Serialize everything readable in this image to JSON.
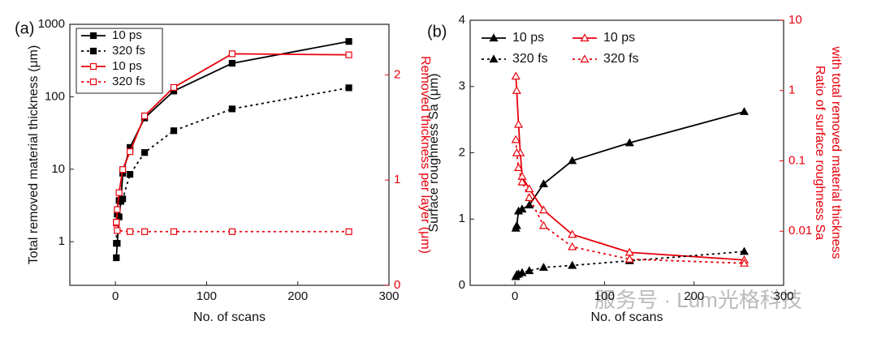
{
  "chart_data": [
    {
      "type": "line",
      "panel": "(a)",
      "xlabel": "No. of scans",
      "ylabel": "Total removed material thickness (μm)",
      "y2label": [
        "Removed thickness per layer (μm)"
      ],
      "xlim": [
        -50,
        300
      ],
      "xticks": [
        0,
        100,
        200,
        300
      ],
      "ylim": [
        0.25,
        1000
      ],
      "yticks": [
        1,
        10,
        100,
        1000
      ],
      "yscale": "log",
      "y2lim": [
        0,
        2.48
      ],
      "y2ticks": [
        0,
        1,
        2
      ],
      "y2color": "#e8000b",
      "legend": "upper left",
      "series": [
        {
          "name": "10 ps",
          "color": "#000000",
          "marker": "square",
          "filled": true,
          "dash": false,
          "x": [
            1,
            2,
            4,
            6,
            8,
            16,
            32,
            64,
            128,
            256
          ],
          "values": [
            0.6,
            0.95,
            2.2,
            3.6,
            8.8,
            20,
            51,
            120,
            290,
            580
          ]
        },
        {
          "name": "320 fs",
          "color": "#000000",
          "marker": "square",
          "filled": true,
          "dash": true,
          "x": [
            1,
            2,
            4,
            8,
            16,
            32,
            64,
            128,
            256
          ],
          "values": [
            0.95,
            2.4,
            3.7,
            3.9,
            8.5,
            17,
            34,
            68,
            133
          ]
        },
        {
          "name": "10 ps",
          "color": "#e8000b",
          "marker": "square",
          "filled": false,
          "dash": false,
          "axis": "y2",
          "x": [
            1,
            2,
            4,
            8,
            16,
            32,
            64,
            128,
            256
          ],
          "values": [
            0.59,
            0.72,
            0.88,
            1.1,
            1.27,
            1.61,
            1.88,
            2.2,
            2.19
          ]
        },
        {
          "name": "320 fs",
          "color": "#e8000b",
          "marker": "square",
          "filled": false,
          "dash": true,
          "axis": "y2",
          "x": [
            1,
            2,
            16,
            32,
            64,
            128,
            256
          ],
          "values": [
            0.6,
            0.52,
            0.51,
            0.51,
            0.51,
            0.51,
            0.51
          ]
        }
      ]
    },
    {
      "type": "line",
      "panel": "(b)",
      "xlabel": "No. of scans",
      "ylabel": "Surface roughness Sa (μm)",
      "y2label": [
        "Ratio of surface roughness Sa",
        "with total removed material thickness"
      ],
      "xlim": [
        -50,
        300
      ],
      "xticks": [
        0,
        100,
        200,
        300
      ],
      "ylim": [
        0,
        4
      ],
      "yticks": [
        0,
        1,
        2,
        3,
        4
      ],
      "y2lim": [
        0.0017,
        10
      ],
      "y2ticks": [
        0.01,
        0.1,
        1,
        10
      ],
      "y2scale": "log",
      "y2color": "#e8000b",
      "legend": "upper left",
      "series": [
        {
          "name": "10 ps",
          "color": "#000000",
          "marker": "triangle",
          "filled": true,
          "dash": false,
          "x": [
            1,
            2,
            4,
            8,
            16,
            32,
            64,
            128,
            256
          ],
          "values": [
            0.86,
            0.9,
            1.12,
            1.15,
            1.21,
            1.53,
            1.88,
            2.15,
            2.62
          ]
        },
        {
          "name": "10 ps",
          "color": "#e8000b",
          "marker": "triangle",
          "filled": false,
          "dash": false,
          "axis": "y2",
          "x": [
            1,
            2,
            4,
            6,
            8,
            16,
            32,
            64,
            128,
            256
          ],
          "values": [
            1.6,
            1.0,
            0.33,
            0.13,
            0.06,
            0.04,
            0.02,
            0.009,
            0.005,
            0.0039
          ]
        },
        {
          "name": "320 fs",
          "color": "#000000",
          "marker": "triangle",
          "filled": true,
          "dash": true,
          "x": [
            1,
            2,
            4,
            8,
            16,
            32,
            64,
            128,
            256
          ],
          "values": [
            0.13,
            0.16,
            0.17,
            0.19,
            0.22,
            0.27,
            0.3,
            0.37,
            0.51
          ]
        },
        {
          "name": "320 fs",
          "color": "#e8000b",
          "marker": "triangle",
          "filled": false,
          "dash": true,
          "axis": "y2",
          "x": [
            1,
            2,
            4,
            8,
            16,
            32,
            64,
            128,
            256
          ],
          "values": [
            0.2,
            0.13,
            0.08,
            0.05,
            0.03,
            0.012,
            0.006,
            0.004,
            0.0035
          ]
        }
      ]
    }
  ],
  "watermark": "服务号 · Lum光格科技"
}
